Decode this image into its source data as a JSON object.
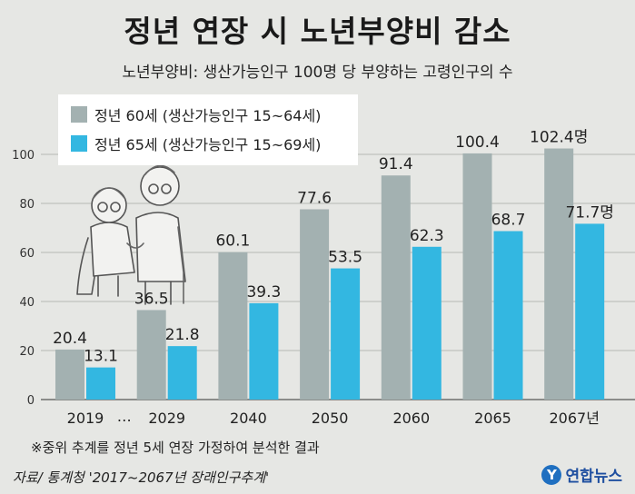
{
  "title": "정년 연장 시 노년부양비 감소",
  "subtitle": "노년부양비: 생산가능인구 100명 당 부양하는 고령인구의 수",
  "note": "※중위 추계를 정년 5세 연장 가정하여 분석한 결과",
  "source": "자료/ 통계청 '2017~2067년 장래인구추계'",
  "brand": {
    "logo_text": "연합뉴스",
    "icon": "yonhap-logo-icon"
  },
  "ellipsis": "…",
  "value_unit_suffix": "명",
  "colors": {
    "series1": "#a3b1b1",
    "series2": "#33b7e1",
    "background": "#e6e7e4"
  },
  "chart_data": {
    "type": "bar",
    "title": "정년 연장 시 노년부양비 감소",
    "categories": [
      "2019",
      "2029",
      "2040",
      "2050",
      "2060",
      "2065",
      "2067년"
    ],
    "series": [
      {
        "name": "정년 60세 (생산가능인구 15~64세)",
        "values": [
          20.4,
          36.5,
          60.1,
          77.6,
          91.4,
          100.4,
          102.4
        ]
      },
      {
        "name": "정년 65세 (생산가능인구 15~69세)",
        "values": [
          13.1,
          21.8,
          39.3,
          53.5,
          62.3,
          68.7,
          71.7
        ]
      }
    ],
    "data_labels": [
      [
        "20.4",
        "36.5",
        "60.1",
        "77.6",
        "91.4",
        "100.4",
        "102.4명"
      ],
      [
        "13.1",
        "21.8",
        "39.3",
        "53.5",
        "62.3",
        "68.7",
        "71.7명"
      ]
    ],
    "yticks": [
      0,
      20,
      40,
      60,
      80,
      100
    ],
    "ylim": [
      0,
      100
    ],
    "grid": true,
    "legend_position": "top-left"
  }
}
